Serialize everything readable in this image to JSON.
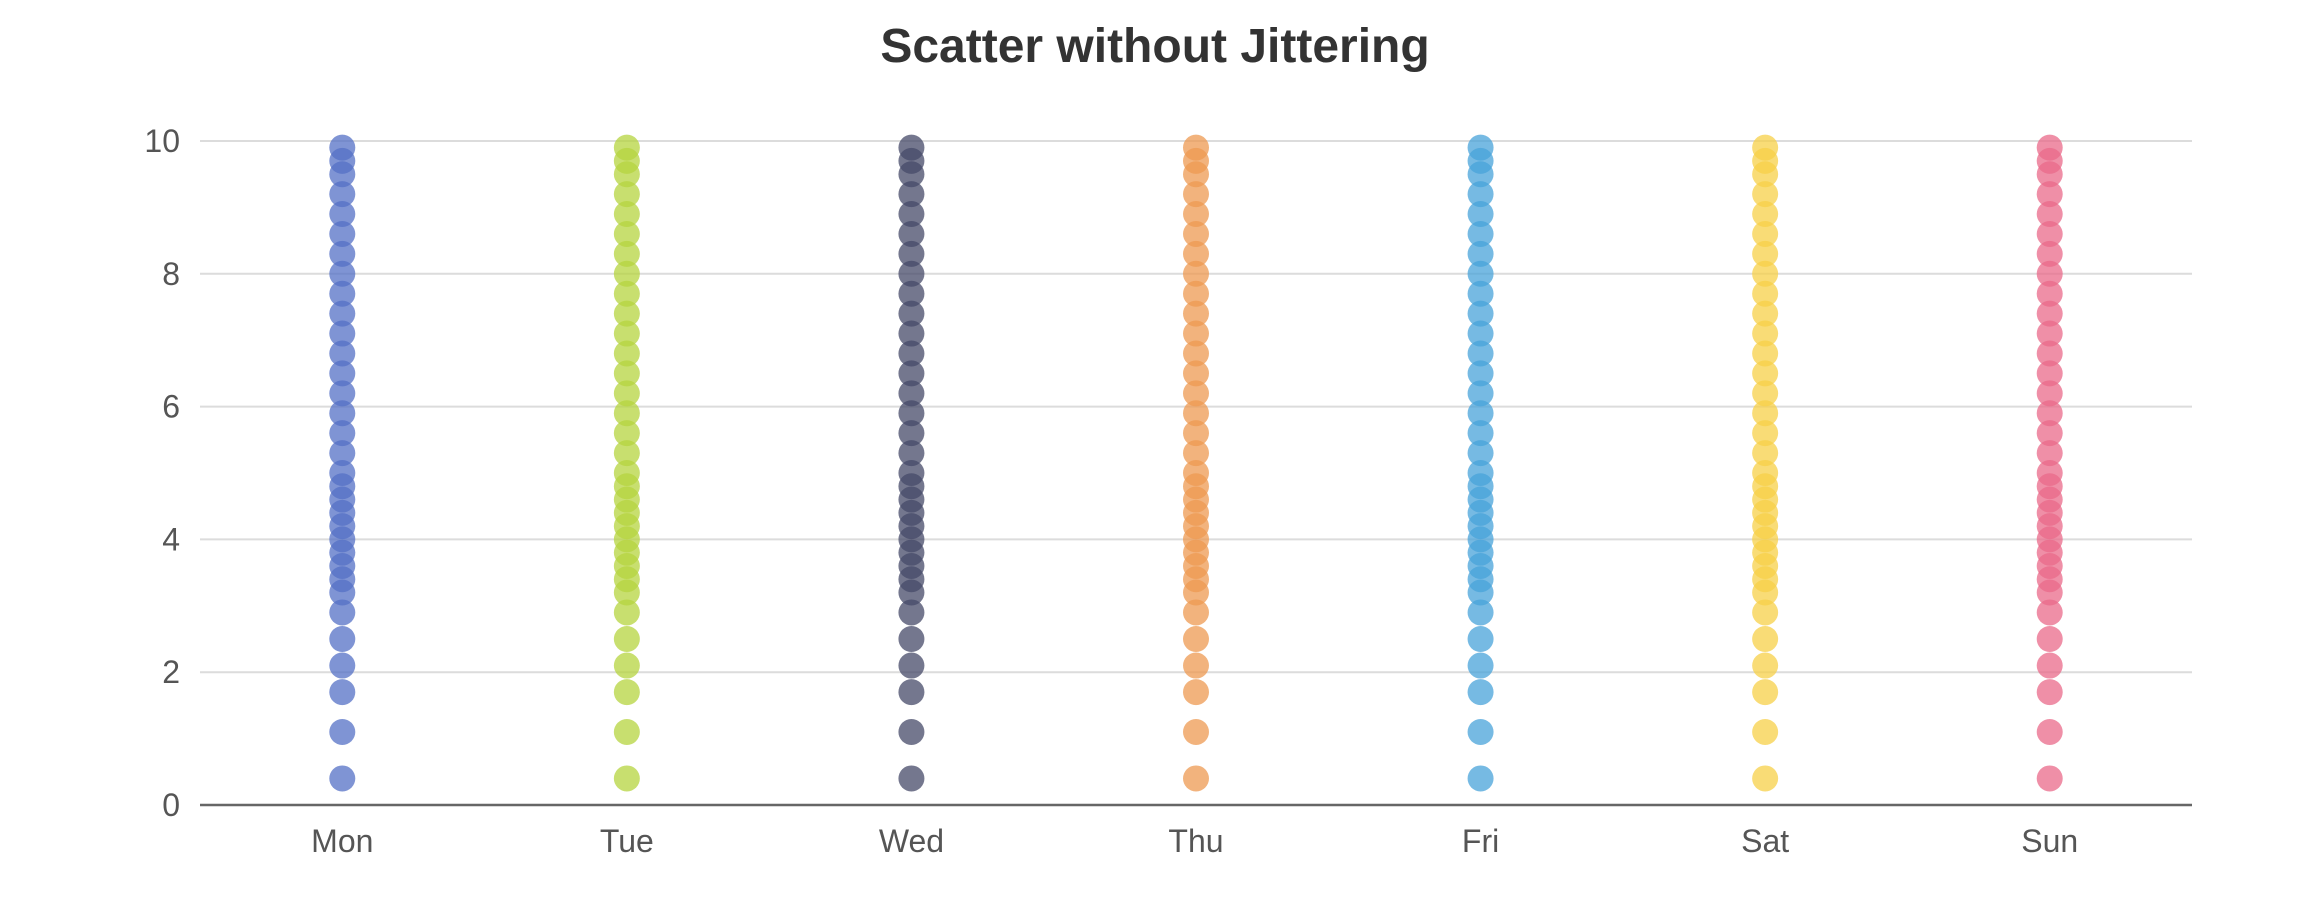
{
  "chart_data": {
    "type": "scatter",
    "title": "Scatter without Jittering",
    "xlabel": "",
    "ylabel": "",
    "categories": [
      "Mon",
      "Tue",
      "Wed",
      "Thu",
      "Fri",
      "Sat",
      "Sun"
    ],
    "ylim": [
      0,
      10
    ],
    "yticks": [
      0,
      2,
      4,
      6,
      8,
      10
    ],
    "grid": true,
    "legend": "none",
    "point_opacity": 0.75,
    "series": [
      {
        "category": "Mon",
        "color": "#5470c6",
        "values": [
          0.4,
          1.1,
          1.7,
          2.1,
          2.5,
          2.9,
          3.2,
          3.4,
          3.6,
          3.8,
          4.0,
          4.2,
          4.4,
          4.6,
          4.8,
          5.0,
          5.3,
          5.6,
          5.9,
          6.2,
          6.5,
          6.8,
          7.1,
          7.4,
          7.7,
          8.0,
          8.3,
          8.6,
          8.9,
          9.2,
          9.5,
          9.7,
          9.9
        ]
      },
      {
        "category": "Tue",
        "color": "#b5d43f",
        "values": [
          0.4,
          1.1,
          1.7,
          2.1,
          2.5,
          2.9,
          3.2,
          3.4,
          3.6,
          3.8,
          4.0,
          4.2,
          4.4,
          4.6,
          4.8,
          5.0,
          5.3,
          5.6,
          5.9,
          6.2,
          6.5,
          6.8,
          7.1,
          7.4,
          7.7,
          8.0,
          8.3,
          8.6,
          8.9,
          9.2,
          9.5,
          9.7,
          9.9
        ]
      },
      {
        "category": "Wed",
        "color": "#464a68",
        "values": [
          0.4,
          1.1,
          1.7,
          2.1,
          2.5,
          2.9,
          3.2,
          3.4,
          3.6,
          3.8,
          4.0,
          4.2,
          4.4,
          4.6,
          4.8,
          5.0,
          5.3,
          5.6,
          5.9,
          6.2,
          6.5,
          6.8,
          7.1,
          7.4,
          7.7,
          8.0,
          8.3,
          8.6,
          8.9,
          9.2,
          9.5,
          9.7,
          9.9
        ]
      },
      {
        "category": "Thu",
        "color": "#ee9a51",
        "values": [
          0.4,
          1.1,
          1.7,
          2.1,
          2.5,
          2.9,
          3.2,
          3.4,
          3.6,
          3.8,
          4.0,
          4.2,
          4.4,
          4.6,
          4.8,
          5.0,
          5.3,
          5.6,
          5.9,
          6.2,
          6.5,
          6.8,
          7.1,
          7.4,
          7.7,
          8.0,
          8.3,
          8.6,
          8.9,
          9.2,
          9.5,
          9.7,
          9.9
        ]
      },
      {
        "category": "Fri",
        "color": "#48a3da",
        "values": [
          0.4,
          1.1,
          1.7,
          2.1,
          2.5,
          2.9,
          3.2,
          3.4,
          3.6,
          3.8,
          4.0,
          4.2,
          4.4,
          4.6,
          4.8,
          5.0,
          5.3,
          5.6,
          5.9,
          6.2,
          6.5,
          6.8,
          7.1,
          7.4,
          7.7,
          8.0,
          8.3,
          8.6,
          8.9,
          9.2,
          9.5,
          9.7,
          9.9
        ]
      },
      {
        "category": "Sat",
        "color": "#f7d048",
        "values": [
          0.4,
          1.1,
          1.7,
          2.1,
          2.5,
          2.9,
          3.2,
          3.4,
          3.6,
          3.8,
          4.0,
          4.2,
          4.4,
          4.6,
          4.8,
          5.0,
          5.3,
          5.6,
          5.9,
          6.2,
          6.5,
          6.8,
          7.1,
          7.4,
          7.7,
          8.0,
          8.3,
          8.6,
          8.9,
          9.2,
          9.5,
          9.7,
          9.9
        ]
      },
      {
        "category": "Sun",
        "color": "#ea6a8a",
        "values": [
          0.4,
          1.1,
          1.7,
          2.1,
          2.5,
          2.9,
          3.2,
          3.4,
          3.6,
          3.8,
          4.0,
          4.2,
          4.4,
          4.6,
          4.8,
          5.0,
          5.3,
          5.6,
          5.9,
          6.2,
          6.5,
          6.8,
          7.1,
          7.4,
          7.7,
          8.0,
          8.3,
          8.6,
          8.9,
          9.2,
          9.5,
          9.7,
          9.9
        ]
      }
    ]
  }
}
